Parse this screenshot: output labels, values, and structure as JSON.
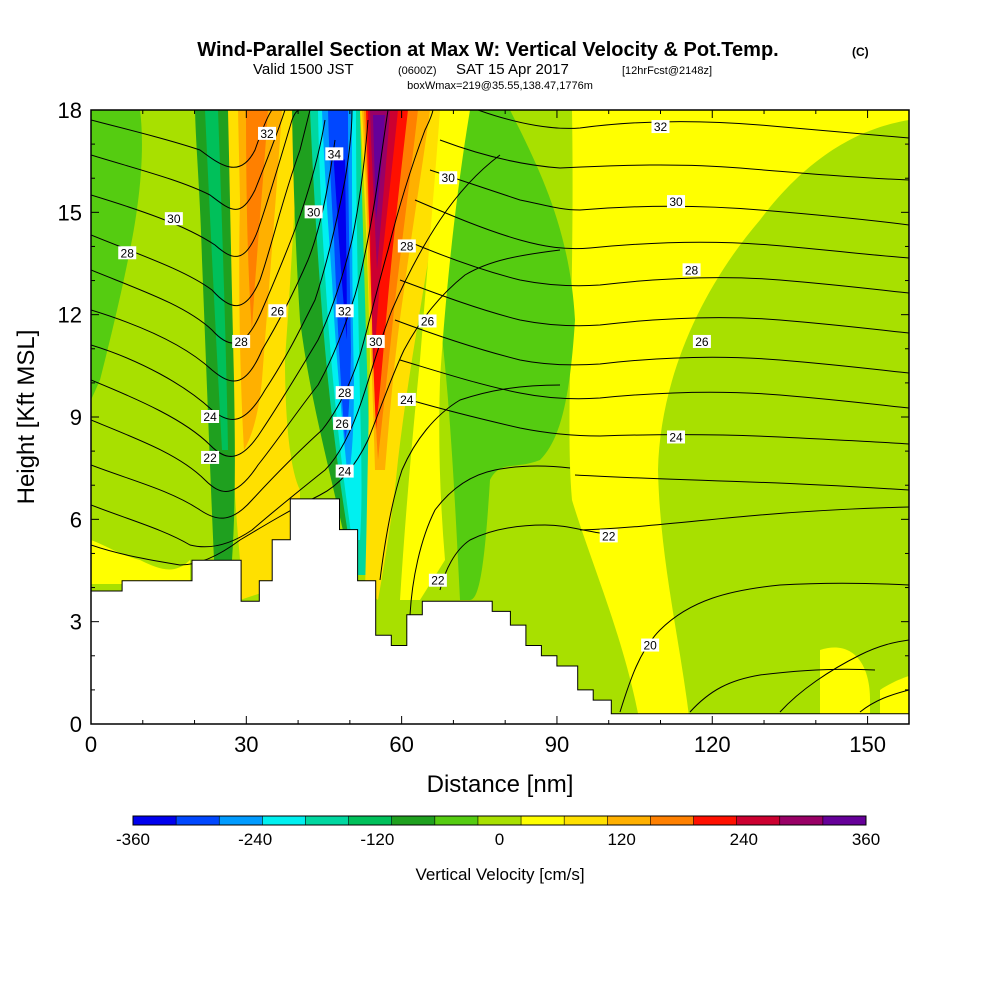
{
  "title": {
    "main": "Wind-Parallel Section at Max W: Vertical Velocity & Pot.Temp.",
    "main_unit": "(C)",
    "valid_prefix": "Valid 1500 JST",
    "valid_utc": "(0600Z)",
    "valid_date": "SAT 15 Apr 2017",
    "forecast": "[12hrFcst@2148z]",
    "box": "boxWmax=219@35.55,138.47,1776m"
  },
  "colors": {
    "neg360": "#0000ee",
    "neg330": "#0047ff",
    "neg300": "#009bff",
    "neg240": "#00f0f0",
    "neg180": "#00d7a0",
    "neg150": "#00c05a",
    "neg120": "#1fa01f",
    "neg60": "#55cc11",
    "neg30": "#a8e000",
    "pos0": "#ffff00",
    "pos60": "#ffe000",
    "pos120": "#ffb000",
    "pos180": "#ff8000",
    "pos240": "#ff1000",
    "pos300": "#cc0030",
    "pos330": "#990066",
    "pos360": "#660099",
    "terrain": "#ffffff"
  },
  "chart_data": {
    "type": "heatmap",
    "xlabel": "Distance [nm]",
    "ylabel": "Height [Kft MSL]",
    "xlim": [
      0,
      158
    ],
    "ylim": [
      0,
      18
    ],
    "xticks": [
      "0",
      "30",
      "60",
      "90",
      "120",
      "150"
    ],
    "yticks": [
      "0",
      "3",
      "6",
      "9",
      "12",
      "15",
      "18"
    ],
    "colorbar": {
      "title": "Vertical Velocity [cm/s]",
      "labels": [
        "-360",
        "-240",
        "-120",
        "0",
        "120",
        "240",
        "360"
      ],
      "levels": [
        -360,
        -330,
        -300,
        -270,
        -240,
        -210,
        -180,
        -150,
        -120,
        -90,
        -60,
        -30,
        0,
        30,
        60,
        90,
        120,
        150,
        180,
        210,
        240,
        270,
        300,
        330,
        360
      ]
    },
    "terrain_profile": [
      {
        "x": 0,
        "y": 3.9
      },
      {
        "x": 6,
        "y": 3.9
      },
      {
        "x": 6,
        "y": 4.2
      },
      {
        "x": 19.5,
        "y": 4.2
      },
      {
        "x": 19.5,
        "y": 4.8
      },
      {
        "x": 29,
        "y": 4.8
      },
      {
        "x": 29,
        "y": 3.6
      },
      {
        "x": 32.5,
        "y": 3.6
      },
      {
        "x": 32.5,
        "y": 4.2
      },
      {
        "x": 35,
        "y": 4.2
      },
      {
        "x": 35,
        "y": 5.4
      },
      {
        "x": 38.5,
        "y": 5.4
      },
      {
        "x": 38.5,
        "y": 6.6
      },
      {
        "x": 48,
        "y": 6.6
      },
      {
        "x": 48,
        "y": 5.7
      },
      {
        "x": 51.5,
        "y": 5.7
      },
      {
        "x": 51.5,
        "y": 4.2
      },
      {
        "x": 55,
        "y": 4.2
      },
      {
        "x": 55,
        "y": 2.6
      },
      {
        "x": 58,
        "y": 2.6
      },
      {
        "x": 58,
        "y": 2.3
      },
      {
        "x": 61,
        "y": 2.3
      },
      {
        "x": 61,
        "y": 3.2
      },
      {
        "x": 64,
        "y": 3.2
      },
      {
        "x": 64,
        "y": 3.6
      },
      {
        "x": 77.5,
        "y": 3.6
      },
      {
        "x": 77.5,
        "y": 3.3
      },
      {
        "x": 81,
        "y": 3.3
      },
      {
        "x": 81,
        "y": 2.9
      },
      {
        "x": 84,
        "y": 2.9
      },
      {
        "x": 84,
        "y": 2.3
      },
      {
        "x": 87,
        "y": 2.3
      },
      {
        "x": 87,
        "y": 2.0
      },
      {
        "x": 90,
        "y": 2.0
      },
      {
        "x": 90,
        "y": 1.7
      },
      {
        "x": 94,
        "y": 1.7
      },
      {
        "x": 94,
        "y": 1.0
      },
      {
        "x": 97,
        "y": 1.0
      },
      {
        "x": 97,
        "y": 0.7
      },
      {
        "x": 100.5,
        "y": 0.7
      },
      {
        "x": 100.5,
        "y": 0.3
      },
      {
        "x": 158,
        "y": 0.3
      },
      {
        "x": 158,
        "y": 0
      },
      {
        "x": 0,
        "y": 0
      }
    ],
    "contour_labels": [
      {
        "text": "32",
        "x": 34,
        "y": 17.3
      },
      {
        "text": "34",
        "x": 47,
        "y": 16.7
      },
      {
        "text": "30",
        "x": 16,
        "y": 14.8
      },
      {
        "text": "28",
        "x": 7,
        "y": 13.8
      },
      {
        "text": "30",
        "x": 43,
        "y": 15.0
      },
      {
        "text": "30",
        "x": 69,
        "y": 16.0
      },
      {
        "text": "28",
        "x": 61,
        "y": 14.0
      },
      {
        "text": "32",
        "x": 49,
        "y": 12.1
      },
      {
        "text": "26",
        "x": 36,
        "y": 12.1
      },
      {
        "text": "28",
        "x": 29,
        "y": 11.2
      },
      {
        "text": "30",
        "x": 55,
        "y": 11.2
      },
      {
        "text": "26",
        "x": 65,
        "y": 11.8
      },
      {
        "text": "28",
        "x": 49,
        "y": 9.7
      },
      {
        "text": "24",
        "x": 61,
        "y": 9.5
      },
      {
        "text": "26",
        "x": 48.5,
        "y": 8.8
      },
      {
        "text": "24",
        "x": 23,
        "y": 9.0
      },
      {
        "text": "22",
        "x": 23,
        "y": 7.8
      },
      {
        "text": "24",
        "x": 49,
        "y": 7.4
      },
      {
        "text": "32",
        "x": 110,
        "y": 17.5
      },
      {
        "text": "30",
        "x": 113,
        "y": 15.3
      },
      {
        "text": "28",
        "x": 116,
        "y": 13.3
      },
      {
        "text": "26",
        "x": 118,
        "y": 11.2
      },
      {
        "text": "24",
        "x": 113,
        "y": 8.4
      },
      {
        "text": "22",
        "x": 100,
        "y": 5.5
      },
      {
        "text": "22",
        "x": 67,
        "y": 4.2
      },
      {
        "text": "20",
        "x": 108,
        "y": 2.3
      }
    ]
  }
}
